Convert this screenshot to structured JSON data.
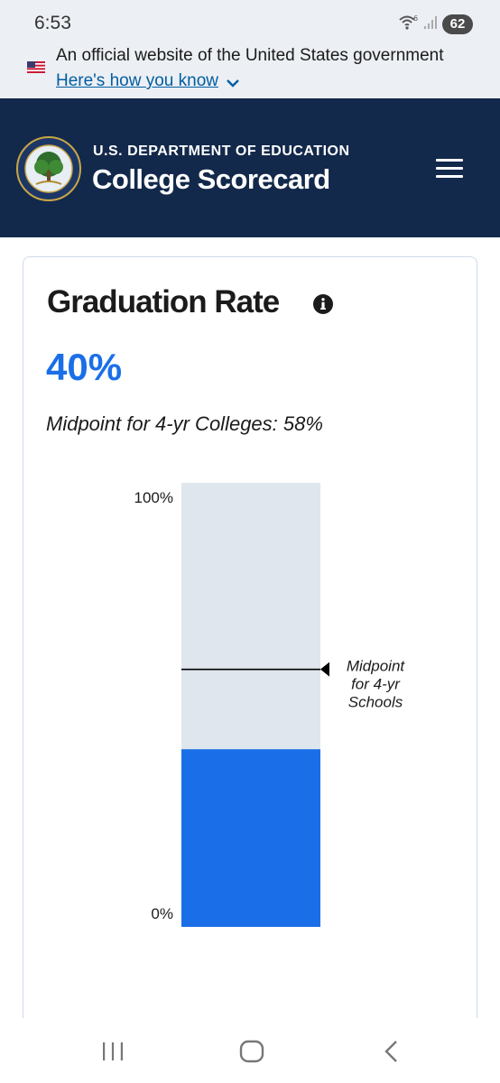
{
  "status_bar": {
    "time": "6:53",
    "battery": "62"
  },
  "gov_banner": {
    "text": "An official website of the United States government",
    "link": "Here's how you know",
    "icons": [
      "us-flag-icon",
      "chevron-down-icon"
    ]
  },
  "header": {
    "department": "U.S. DEPARTMENT OF EDUCATION",
    "title": "College Scorecard",
    "icons": [
      "department-seal-icon",
      "hamburger-menu-icon"
    ]
  },
  "card": {
    "title": "Graduation Rate",
    "value": "40%",
    "midpoint": "Midpoint for 4-yr Colleges: 58%"
  },
  "chart_data": {
    "type": "bar",
    "orientation": "vertical",
    "value_percent": 40,
    "midpoint_percent": 58,
    "ylim": [
      0,
      100
    ],
    "tick_labels": {
      "top": "100%",
      "bottom": "0%"
    },
    "marker_label_lines": [
      "Midpoint",
      "for 4-yr",
      "Schools"
    ],
    "colors": {
      "fill": "#1a6fe8",
      "track": "#dfe6ee",
      "marker": "#000000"
    }
  },
  "nav": {
    "icons": [
      "recent-apps-icon",
      "home-icon",
      "back-icon"
    ]
  }
}
